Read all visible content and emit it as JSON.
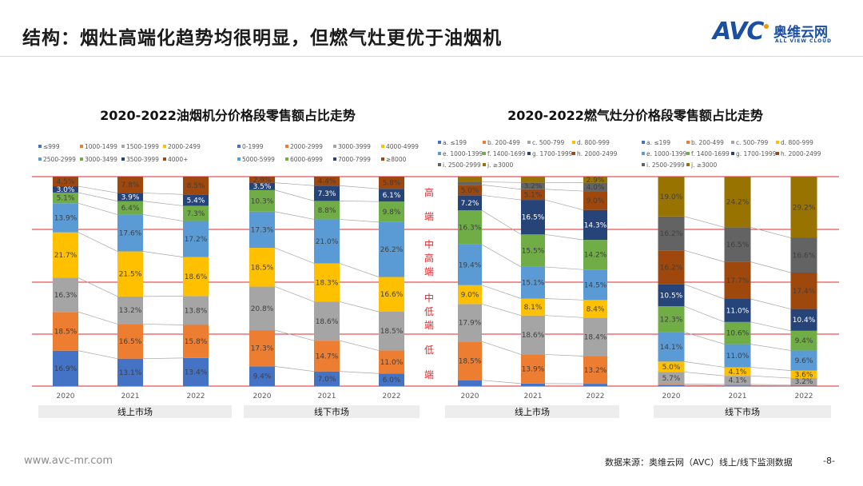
{
  "header": {
    "title": "结构：烟灶高端化趋势均很明显，但燃气灶更优于油烟机",
    "logo_text": "AVC",
    "logo_cn": "奥维云网",
    "logo_en": "ALL VIEW CLOUD"
  },
  "footer": {
    "site": "www.avc-mr.com",
    "source": "数据来源：奥维云网（AVC）线上/线下监测数据",
    "page": "-8-"
  },
  "tiers": [
    "高\n端",
    "中\n高\n端",
    "中\n低\n端",
    "低\n端"
  ],
  "colors": {
    "tier_line": "#e0272b",
    "tier_text": "#e0272b"
  },
  "chart_data": [
    {
      "type": "bar",
      "stacked": "percent",
      "title": "2020-2022油烟机分价格段零售额占比走势",
      "ylim": [
        0,
        100
      ],
      "groups": [
        {
          "market": "线上市场",
          "categories": [
            "2020",
            "2021",
            "2022"
          ],
          "series": [
            {
              "name": "≤999",
              "color": "#4472C4",
              "values": [
                16.9,
                13.1,
                13.4
              ]
            },
            {
              "name": "1000-1499",
              "color": "#ED7D31",
              "values": [
                18.5,
                16.5,
                15.8
              ]
            },
            {
              "name": "1500-1999",
              "color": "#A5A5A5",
              "values": [
                16.3,
                13.2,
                13.8
              ]
            },
            {
              "name": "2000-2499",
              "color": "#FFC000",
              "values": [
                21.7,
                21.5,
                18.6
              ]
            },
            {
              "name": "2500-2999",
              "color": "#5B9BD5",
              "values": [
                13.9,
                17.6,
                17.2
              ]
            },
            {
              "name": "3000-3499",
              "color": "#70AD47",
              "values": [
                5.1,
                6.4,
                7.3
              ]
            },
            {
              "name": "3500-3999",
              "color": "#264478",
              "values": [
                3.0,
                3.9,
                5.4
              ]
            },
            {
              "name": "4000+",
              "color": "#9E480E",
              "values": [
                4.5,
                7.8,
                8.5
              ]
            }
          ]
        },
        {
          "market": "线下市场",
          "categories": [
            "2020",
            "2021",
            "2022"
          ],
          "series": [
            {
              "name": "0-1999",
              "color": "#4472C4",
              "values": [
                9.4,
                7.0,
                6.0
              ]
            },
            {
              "name": "2000-2999",
              "color": "#ED7D31",
              "values": [
                17.3,
                14.7,
                11.0
              ]
            },
            {
              "name": "3000-3999",
              "color": "#A5A5A5",
              "values": [
                20.8,
                18.6,
                18.5
              ]
            },
            {
              "name": "4000-4999",
              "color": "#FFC000",
              "values": [
                18.5,
                18.3,
                16.6
              ]
            },
            {
              "name": "5000-5999",
              "color": "#5B9BD5",
              "values": [
                17.3,
                21.0,
                26.2
              ]
            },
            {
              "name": "6000-6999",
              "color": "#70AD47",
              "values": [
                10.3,
                8.8,
                9.8
              ]
            },
            {
              "name": "7000-7999",
              "color": "#264478",
              "values": [
                3.5,
                7.3,
                6.1
              ]
            },
            {
              "name": "≥8000",
              "color": "#9E480E",
              "values": [
                2.9,
                4.4,
                5.8
              ]
            }
          ]
        }
      ]
    },
    {
      "type": "bar",
      "stacked": "percent",
      "title": "2020-2022燃气灶分价格段零售额占比走势",
      "ylim": [
        0,
        100
      ],
      "groups": [
        {
          "market": "线上市场",
          "categories": [
            "2020",
            "2021",
            "2022"
          ],
          "series": [
            {
              "name": "a. ≤199",
              "color": "#4472C4",
              "values": [
                2.8,
                1.2,
                1.1
              ]
            },
            {
              "name": "b. 200-499",
              "color": "#ED7D31",
              "values": [
                18.5,
                13.9,
                13.2
              ]
            },
            {
              "name": "c. 500-799",
              "color": "#A5A5A5",
              "values": [
                17.9,
                18.6,
                18.4
              ]
            },
            {
              "name": "d. 800-999",
              "color": "#FFC000",
              "values": [
                9.0,
                8.1,
                8.4
              ]
            },
            {
              "name": "e. 1000-1399",
              "color": "#5B9BD5",
              "values": [
                19.4,
                15.1,
                14.5
              ]
            },
            {
              "name": "f. 1400-1699",
              "color": "#70AD47",
              "values": [
                16.3,
                15.5,
                14.2
              ]
            },
            {
              "name": "g. 1700-1999",
              "color": "#264478",
              "values": [
                7.2,
                16.5,
                14.3
              ]
            },
            {
              "name": "h. 2000-2499",
              "color": "#9E480E",
              "values": [
                5.0,
                5.1,
                9.0
              ]
            },
            {
              "name": "i. 2500-2999",
              "color": "#636363",
              "values": [
                1.4,
                3.2,
                4.0
              ]
            },
            {
              "name": "j. ≥3000",
              "color": "#997300",
              "values": [
                2.5,
                2.8,
                2.9
              ]
            }
          ]
        },
        {
          "market": "线下市场",
          "categories": [
            "2020",
            "2021",
            "2022"
          ],
          "series": [
            {
              "name": "a. ≤199",
              "color": "#4472C4",
              "values": [
                0.4,
                0.3,
                0.2
              ]
            },
            {
              "name": "b. 200-499",
              "color": "#ED7D31",
              "values": [
                0.6,
                0.5,
                0.4
              ]
            },
            {
              "name": "c. 500-799",
              "color": "#A5A5A5",
              "values": [
                5.7,
                4.1,
                3.2
              ]
            },
            {
              "name": "d. 800-999",
              "color": "#FFC000",
              "values": [
                5.0,
                4.1,
                3.6
              ]
            },
            {
              "name": "e. 1000-1399",
              "color": "#5B9BD5",
              "values": [
                14.1,
                11.0,
                9.6
              ]
            },
            {
              "name": "f. 1400-1699",
              "color": "#70AD47",
              "values": [
                12.3,
                10.6,
                9.4
              ]
            },
            {
              "name": "g. 1700-1999",
              "color": "#264478",
              "values": [
                10.5,
                11.0,
                10.4
              ]
            },
            {
              "name": "h. 2000-2499",
              "color": "#9E480E",
              "values": [
                16.2,
                17.7,
                17.4
              ]
            },
            {
              "name": "i. 2500-2999",
              "color": "#636363",
              "values": [
                16.2,
                16.5,
                16.6
              ]
            },
            {
              "name": "j. ≥3000",
              "color": "#997300",
              "values": [
                19.0,
                24.2,
                29.2
              ]
            }
          ]
        }
      ]
    }
  ]
}
